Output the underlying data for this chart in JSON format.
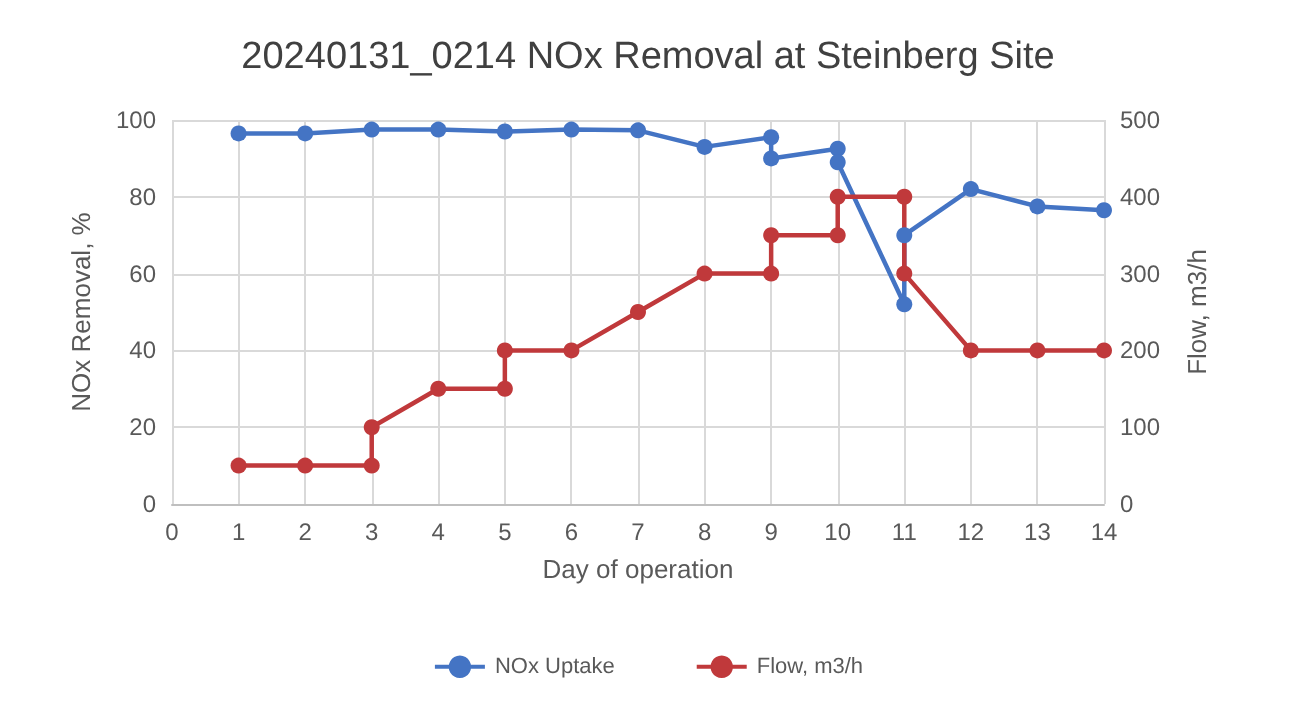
{
  "chart_data": {
    "type": "line",
    "title": "20240131_0214 NOx Removal at Steinberg Site",
    "xlabel": "Day of operation",
    "ylabel": "NOx Removal, %",
    "y2label": "Flow, m3/h",
    "series": [
      {
        "name": "NOx Uptake",
        "color": "#4474c4",
        "x": [
          1,
          2,
          3,
          4,
          5,
          6,
          7,
          8,
          9,
          9,
          10,
          10,
          11,
          11,
          12,
          13,
          14
        ],
        "values": [
          96.5,
          96.5,
          97.5,
          97.5,
          97,
          97.5,
          97.3,
          93,
          95.5,
          90,
          92.5,
          89,
          52,
          70,
          82,
          77.5,
          76.5
        ]
      },
      {
        "name": "Flow, m3/h",
        "color": "#c0393b",
        "axis": "y2",
        "x": [
          1,
          2,
          3,
          3,
          4,
          5,
          5,
          6,
          7,
          8,
          9,
          9,
          10,
          10,
          11,
          11,
          12,
          13,
          14
        ],
        "values": [
          50,
          50,
          50,
          100,
          150,
          150,
          200,
          200,
          250,
          300,
          300,
          350,
          350,
          400,
          400,
          300,
          200,
          200,
          200
        ]
      }
    ],
    "xlim": [
      0,
      14
    ],
    "xticks": [
      0,
      1,
      2,
      3,
      4,
      5,
      6,
      7,
      8,
      9,
      10,
      11,
      12,
      13,
      14
    ],
    "ylim": [
      0,
      100
    ],
    "yticks": [
      0,
      20,
      40,
      60,
      80,
      100
    ],
    "y2lim": [
      0,
      500
    ],
    "y2ticks": [
      0,
      100,
      200,
      300,
      400,
      500
    ],
    "grid": true,
    "legend": "bottom",
    "marker": "circle",
    "line_style": "solid"
  }
}
